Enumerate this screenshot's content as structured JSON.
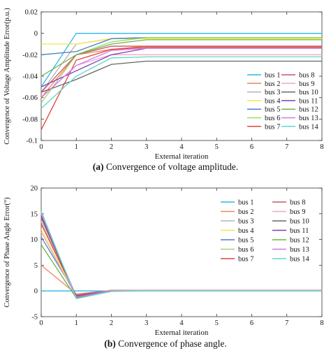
{
  "captions": [
    {
      "label": "(a)",
      "text": "Convergence of voltage amplitude."
    },
    {
      "label": "(b)",
      "text": "Convergence of phase angle."
    }
  ],
  "chart_data": [
    {
      "type": "line",
      "title": "",
      "xlabel": "External iteration",
      "ylabel": "Convergence of Voltage Amplitude Error(p.u.)",
      "x": [
        0,
        1,
        2,
        3,
        4,
        5,
        6,
        7,
        8
      ],
      "xlim": [
        0,
        8
      ],
      "ylim": [
        -0.1,
        0.02
      ],
      "xticks": [
        0,
        1,
        2,
        3,
        4,
        5,
        6,
        7,
        8
      ],
      "yticks": [
        -0.1,
        -0.08,
        -0.06,
        -0.04,
        -0.02,
        0,
        0.02
      ],
      "ytick_labels": [
        "-0.1",
        "-0.08",
        "-0.06",
        "-0.04",
        "-0.02",
        "0",
        "0.02"
      ],
      "grid": false,
      "legend_position": "bottom-right",
      "series": [
        {
          "name": "bus 1",
          "color": "#2eb5ea",
          "values": [
            -0.05,
            0,
            0,
            0,
            0,
            0,
            0,
            0,
            0
          ]
        },
        {
          "name": "bus 2",
          "color": "#f0845a",
          "values": [
            -0.06,
            -0.02,
            -0.015,
            -0.012,
            -0.012,
            -0.012,
            -0.012,
            -0.012,
            -0.012
          ]
        },
        {
          "name": "bus 3",
          "color": "#b3b3b3",
          "values": [
            -0.055,
            -0.01,
            -0.005,
            -0.004,
            -0.004,
            -0.004,
            -0.004,
            -0.004,
            -0.004
          ]
        },
        {
          "name": "bus 4",
          "color": "#f2e64a",
          "values": [
            -0.01,
            -0.01,
            -0.005,
            -0.005,
            -0.005,
            -0.005,
            -0.005,
            -0.005,
            -0.005
          ]
        },
        {
          "name": "bus 5",
          "color": "#4a7fc1",
          "values": [
            -0.02,
            -0.017,
            -0.005,
            -0.004,
            -0.004,
            -0.004,
            -0.004,
            -0.004,
            -0.004
          ]
        },
        {
          "name": "bus 6",
          "color": "#9fd86a",
          "values": [
            -0.065,
            -0.02,
            -0.008,
            -0.004,
            -0.004,
            -0.004,
            -0.004,
            -0.004,
            -0.004
          ]
        },
        {
          "name": "bus 7",
          "color": "#e0443a",
          "values": [
            -0.09,
            -0.025,
            -0.015,
            -0.013,
            -0.013,
            -0.013,
            -0.013,
            -0.013,
            -0.013
          ]
        },
        {
          "name": "bus 8",
          "color": "#c9566a",
          "values": [
            -0.055,
            -0.02,
            -0.012,
            -0.012,
            -0.012,
            -0.012,
            -0.012,
            -0.012,
            -0.012
          ]
        },
        {
          "name": "bus 9",
          "color": "#f0a8c8",
          "values": [
            -0.06,
            -0.03,
            -0.02,
            -0.02,
            -0.02,
            -0.02,
            -0.02,
            -0.02,
            -0.02
          ]
        },
        {
          "name": "bus 10",
          "color": "#666666",
          "values": [
            -0.055,
            -0.043,
            -0.029,
            -0.026,
            -0.026,
            -0.026,
            -0.026,
            -0.026,
            -0.026
          ]
        },
        {
          "name": "bus 11",
          "color": "#7b3fb5",
          "values": [
            -0.05,
            -0.035,
            -0.02,
            -0.014,
            -0.014,
            -0.014,
            -0.014,
            -0.014,
            -0.014
          ]
        },
        {
          "name": "bus 12",
          "color": "#6fb24a",
          "values": [
            -0.04,
            -0.02,
            -0.01,
            -0.006,
            -0.006,
            -0.006,
            -0.006,
            -0.006,
            -0.006
          ]
        },
        {
          "name": "bus 13",
          "color": "#d676e8",
          "values": [
            -0.06,
            -0.03,
            -0.016,
            -0.014,
            -0.014,
            -0.014,
            -0.014,
            -0.014,
            -0.014
          ]
        },
        {
          "name": "bus 14",
          "color": "#5fd6c8",
          "values": [
            -0.07,
            -0.04,
            -0.023,
            -0.022,
            -0.022,
            -0.022,
            -0.022,
            -0.022,
            -0.022
          ]
        }
      ]
    },
    {
      "type": "line",
      "title": "",
      "xlabel": "External iteration",
      "ylabel": "Convergence of Phase Angle Error(°)",
      "x": [
        0,
        1,
        2,
        3,
        4,
        5,
        6,
        7,
        8
      ],
      "xlim": [
        0,
        8
      ],
      "ylim": [
        -5,
        20
      ],
      "xticks": [
        0,
        1,
        2,
        3,
        4,
        5,
        6,
        7,
        8
      ],
      "yticks": [
        -5,
        0,
        5,
        10,
        15,
        20
      ],
      "ytick_labels": [
        "-5",
        "0",
        "5",
        "10",
        "15",
        "20"
      ],
      "grid": false,
      "legend_position": "top-right",
      "series": [
        {
          "name": "bus 1",
          "color": "#2eb5ea",
          "values": [
            0,
            0,
            0,
            0,
            0,
            0,
            0,
            0,
            0
          ]
        },
        {
          "name": "bus 2",
          "color": "#f0845a",
          "values": [
            5,
            -0.6,
            0.1,
            0.1,
            0.1,
            0.1,
            0.1,
            0.1,
            0.1
          ]
        },
        {
          "name": "bus 3",
          "color": "#b3b3b3",
          "values": [
            13.5,
            -1.2,
            0.1,
            0.1,
            0.1,
            0.1,
            0.1,
            0.1,
            0.1
          ]
        },
        {
          "name": "bus 4",
          "color": "#f2e64a",
          "values": [
            12,
            -1,
            0.2,
            0.1,
            0.1,
            0.1,
            0.1,
            0.1,
            0.1
          ]
        },
        {
          "name": "bus 5",
          "color": "#4a7fc1",
          "values": [
            10.5,
            -0.8,
            0.1,
            0.1,
            0.1,
            0.1,
            0.1,
            0.1,
            0.1
          ]
        },
        {
          "name": "bus 6",
          "color": "#9fd86a",
          "values": [
            15.2,
            -1.5,
            0,
            0,
            0,
            0,
            0,
            0,
            0
          ]
        },
        {
          "name": "bus 7",
          "color": "#e0443a",
          "values": [
            13,
            -0.9,
            0,
            0.1,
            0.1,
            0.1,
            0.1,
            0.1,
            0.1
          ]
        },
        {
          "name": "bus 8",
          "color": "#c9566a",
          "values": [
            14.2,
            -1.1,
            0.1,
            0.1,
            0.1,
            0.1,
            0.1,
            0.1,
            0.1
          ]
        },
        {
          "name": "bus 9",
          "color": "#f0a8c8",
          "values": [
            11.5,
            -1.2,
            0.1,
            0.1,
            0.1,
            0.1,
            0.1,
            0.1,
            0.1
          ]
        },
        {
          "name": "bus 10",
          "color": "#666666",
          "values": [
            14.5,
            -1.3,
            0,
            0,
            0,
            0,
            0,
            0,
            0
          ]
        },
        {
          "name": "bus 11",
          "color": "#7b3fb5",
          "values": [
            14.8,
            -1.1,
            0,
            0,
            0,
            0,
            0,
            0,
            0
          ]
        },
        {
          "name": "bus 12",
          "color": "#6fb24a",
          "values": [
            9,
            -1.4,
            0,
            0,
            0,
            0,
            0,
            0,
            0
          ]
        },
        {
          "name": "bus 13",
          "color": "#d676e8",
          "values": [
            15,
            -1.2,
            0,
            0,
            0,
            0,
            0,
            0,
            0
          ]
        },
        {
          "name": "bus 14",
          "color": "#5fd6c8",
          "values": [
            15.5,
            -1.5,
            -0.1,
            0,
            0,
            0,
            0,
            0,
            0
          ]
        }
      ]
    }
  ]
}
